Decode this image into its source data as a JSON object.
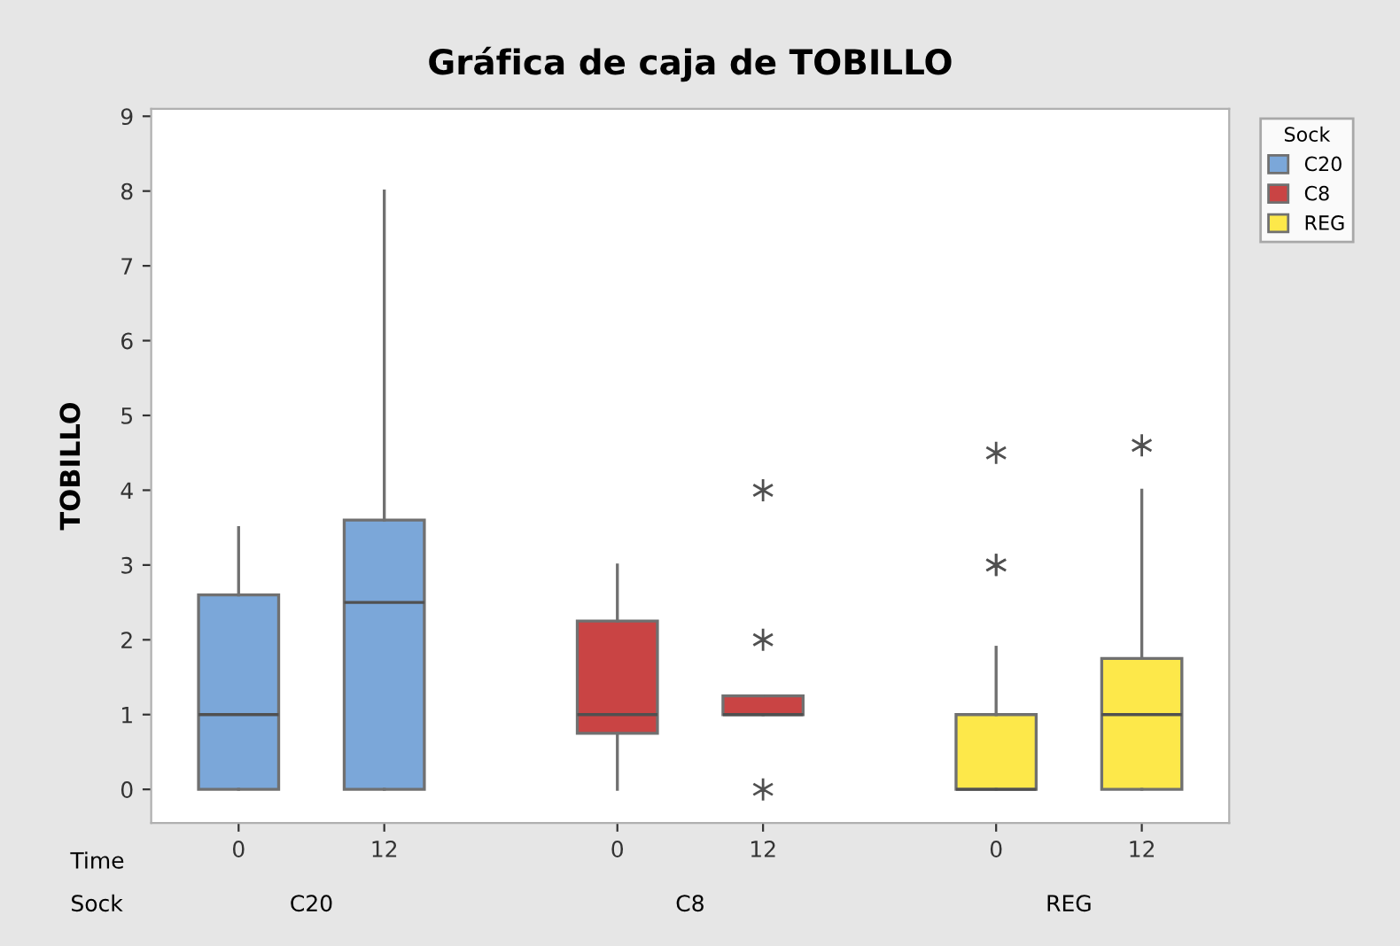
{
  "chart_data": {
    "type": "box",
    "title": "Gráfica de caja de TOBILLO",
    "ylabel": "TOBILLO",
    "legend_title": "Sock",
    "legend": "top right",
    "marker": "star",
    "grid": false,
    "categories": [
      "0",
      "12",
      "0",
      "12",
      "0",
      "12"
    ],
    "annotations": [
      "Time",
      "Sock"
    ],
    "ylim": [
      -0.45,
      9.1
    ],
    "yticks": [
      0,
      1,
      2,
      3,
      4,
      5,
      6,
      7,
      8,
      9
    ],
    "series": [
      {
        "name": "C20",
        "color": "#7ba7d9",
        "boxes": [
          {
            "low": 0,
            "q1": 0,
            "median": 1,
            "q3": 2.6,
            "high": 3.5
          },
          {
            "low": 0,
            "q1": 0,
            "median": 2.5,
            "q3": 3.6,
            "high": 8
          },
          null,
          null,
          null,
          null
        ]
      },
      {
        "name": "C8",
        "color": "#c94444",
        "boxes": [
          null,
          null,
          {
            "low": 0,
            "q1": 0.75,
            "median": 1,
            "q3": 2.25,
            "high": 3
          },
          {
            "low": 1,
            "q1": 1,
            "median": 1,
            "q3": 1.25,
            "high": 1.25,
            "outliers": [
              0,
              2,
              4
            ]
          },
          null,
          null
        ]
      },
      {
        "name": "REG",
        "color": "#fde84a",
        "boxes": [
          null,
          null,
          null,
          null,
          {
            "low": 0,
            "q1": 0,
            "median": 0,
            "q3": 1,
            "high": 1.9,
            "outliers": [
              3,
              3,
              4.5
            ]
          },
          {
            "low": 0,
            "q1": 0,
            "median": 1,
            "q3": 1.75,
            "high": 4,
            "outliers": [
              4.6
            ]
          }
        ]
      }
    ]
  }
}
